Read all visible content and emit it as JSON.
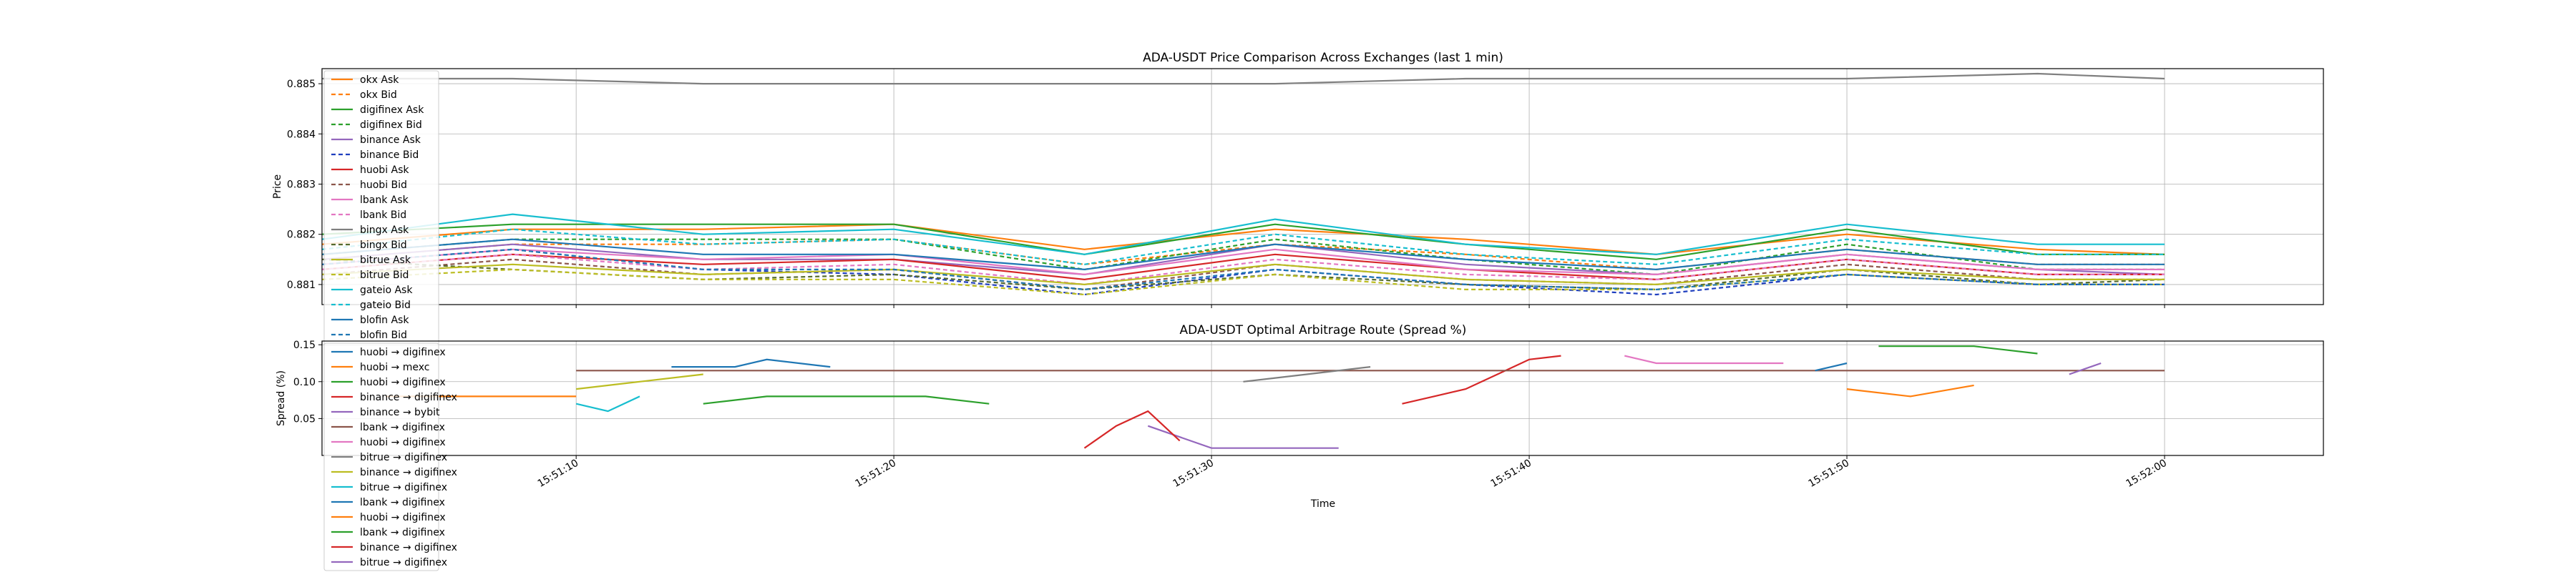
{
  "chart_data": [
    {
      "type": "line",
      "title": "ADA-USDT Price Comparison Across Exchanges (last 1 min)",
      "xlabel": "",
      "ylabel": "Price",
      "xlim": [
        "15:51:02",
        "15:52:05"
      ],
      "ylim": [
        0.8806,
        0.8853
      ],
      "yticks": [
        "0.881",
        "0.882",
        "0.883",
        "0.884",
        "0.885"
      ],
      "grid": true,
      "legend_position": "top-left",
      "series": [
        {
          "name": "okx Ask",
          "color": "#ff7f0e",
          "dash": "solid",
          "x": [
            "15:51:02",
            "15:51:08",
            "15:51:14",
            "15:51:20",
            "15:51:26",
            "15:51:32",
            "15:51:38",
            "15:51:44",
            "15:51:50",
            "15:51:56",
            "15:52:00"
          ],
          "values": [
            0.8818,
            0.8821,
            0.8821,
            0.8822,
            0.8817,
            0.8821,
            0.8819,
            0.8816,
            0.882,
            0.8817,
            0.8816
          ]
        },
        {
          "name": "okx Bid",
          "color": "#ff7f0e",
          "dash": "dashed",
          "x": [
            "15:51:02",
            "15:51:08",
            "15:51:14",
            "15:51:20",
            "15:51:26",
            "15:51:32",
            "15:51:38",
            "15:51:44",
            "15:51:50",
            "15:51:56",
            "15:52:00"
          ],
          "values": [
            0.8815,
            0.8818,
            0.8818,
            0.8819,
            0.8814,
            0.8818,
            0.8816,
            0.8813,
            0.8817,
            0.8814,
            0.8814
          ]
        },
        {
          "name": "digifinex Ask",
          "color": "#2ca02c",
          "dash": "solid",
          "x": [
            "15:51:02",
            "15:51:08",
            "15:51:14",
            "15:51:20",
            "15:51:26",
            "15:51:32",
            "15:51:38",
            "15:51:44",
            "15:51:50",
            "15:51:56",
            "15:52:00"
          ],
          "values": [
            0.882,
            0.8822,
            0.8822,
            0.8822,
            0.8816,
            0.8822,
            0.8818,
            0.8815,
            0.8821,
            0.8816,
            0.8816
          ]
        },
        {
          "name": "digifinex Bid",
          "color": "#2ca02c",
          "dash": "dashed",
          "x": [
            "15:51:02",
            "15:51:08",
            "15:51:14",
            "15:51:20",
            "15:51:26",
            "15:51:32",
            "15:51:38",
            "15:51:44",
            "15:51:50",
            "15:51:56",
            "15:52:00"
          ],
          "values": [
            0.8816,
            0.8819,
            0.8819,
            0.8819,
            0.8813,
            0.8819,
            0.8815,
            0.8812,
            0.8818,
            0.8813,
            0.8813
          ]
        },
        {
          "name": "binance Ask",
          "color": "#9467bd",
          "dash": "solid",
          "x": [
            "15:51:02",
            "15:51:08",
            "15:51:14",
            "15:51:20",
            "15:51:26",
            "15:51:32",
            "15:51:38",
            "15:51:44",
            "15:51:50",
            "15:51:56",
            "15:52:00"
          ],
          "values": [
            0.8815,
            0.8818,
            0.8815,
            0.8815,
            0.8812,
            0.8818,
            0.8814,
            0.8812,
            0.8816,
            0.8813,
            0.8812
          ]
        },
        {
          "name": "binance Bid",
          "color": "#1f3fbf",
          "dash": "dashed",
          "x": [
            "15:51:02",
            "15:51:08",
            "15:51:14",
            "15:51:20",
            "15:51:26",
            "15:51:32",
            "15:51:38",
            "15:51:44",
            "15:51:50",
            "15:51:56",
            "15:52:00"
          ],
          "values": [
            0.8814,
            0.8817,
            0.8813,
            0.8812,
            0.8808,
            0.8813,
            0.881,
            0.8808,
            0.8812,
            0.881,
            0.881
          ]
        },
        {
          "name": "huobi Ask",
          "color": "#d62728",
          "dash": "solid",
          "x": [
            "15:51:02",
            "15:51:08",
            "15:51:14",
            "15:51:20",
            "15:51:26",
            "15:51:32",
            "15:51:38",
            "15:51:44",
            "15:51:50",
            "15:51:56",
            "15:52:00"
          ],
          "values": [
            0.8813,
            0.8816,
            0.8814,
            0.8815,
            0.8811,
            0.8816,
            0.8813,
            0.8811,
            0.8815,
            0.8812,
            0.8812
          ]
        },
        {
          "name": "huobi Bid",
          "color": "#8c564b",
          "dash": "dashed",
          "x": [
            "15:51:02",
            "15:51:08",
            "15:51:14",
            "15:51:20",
            "15:51:26",
            "15:51:32",
            "15:51:38",
            "15:51:44",
            "15:51:50",
            "15:51:56",
            "15:52:00"
          ],
          "values": [
            0.8812,
            0.8815,
            0.8812,
            0.8813,
            0.8809,
            0.8814,
            0.8811,
            0.881,
            0.8814,
            0.8811,
            0.8811
          ]
        },
        {
          "name": "lbank Ask",
          "color": "#e377c2",
          "dash": "solid",
          "x": [
            "15:51:02",
            "15:51:08",
            "15:51:14",
            "15:51:20",
            "15:51:26",
            "15:51:32",
            "15:51:38",
            "15:51:44",
            "15:51:50",
            "15:51:56",
            "15:52:00"
          ],
          "values": [
            0.8814,
            0.8817,
            0.8815,
            0.8816,
            0.8812,
            0.8817,
            0.8813,
            0.8812,
            0.8816,
            0.8813,
            0.8813
          ]
        },
        {
          "name": "lbank Bid",
          "color": "#e377c2",
          "dash": "dashed",
          "x": [
            "15:51:02",
            "15:51:08",
            "15:51:14",
            "15:51:20",
            "15:51:26",
            "15:51:32",
            "15:51:38",
            "15:51:44",
            "15:51:50",
            "15:51:56",
            "15:52:00"
          ],
          "values": [
            0.8813,
            0.8816,
            0.8813,
            0.8814,
            0.881,
            0.8815,
            0.8812,
            0.8811,
            0.8815,
            0.8812,
            0.8812
          ]
        },
        {
          "name": "bingx Ask",
          "color": "#7f7f7f",
          "dash": "solid",
          "x": [
            "15:51:02",
            "15:51:08",
            "15:51:14",
            "15:51:20",
            "15:51:26",
            "15:51:32",
            "15:51:38",
            "15:51:44",
            "15:51:50",
            "15:51:56",
            "15:52:00"
          ],
          "values": [
            0.8851,
            0.8851,
            0.885,
            0.885,
            0.885,
            0.885,
            0.8851,
            0.8851,
            0.8851,
            0.8852,
            0.8851
          ]
        },
        {
          "name": "bingx Bid",
          "color": "#556b2f",
          "dash": "dashed",
          "x": [
            "15:51:02",
            "15:51:08",
            "15:51:14",
            "15:51:20",
            "15:51:26",
            "15:51:32",
            "15:51:38",
            "15:51:44",
            "15:51:50",
            "15:51:56",
            "15:52:00"
          ],
          "values": [
            0.8815,
            0.8813,
            0.8811,
            0.8812,
            0.8809,
            0.8812,
            0.881,
            0.8809,
            0.8813,
            0.881,
            0.8811
          ]
        },
        {
          "name": "bitrue Ask",
          "color": "#bcbd22",
          "dash": "solid",
          "x": [
            "15:51:02",
            "15:51:08",
            "15:51:14",
            "15:51:20",
            "15:51:26",
            "15:51:32",
            "15:51:38",
            "15:51:44",
            "15:51:50",
            "15:51:56",
            "15:52:00"
          ],
          "values": [
            0.8812,
            0.8814,
            0.8812,
            0.8813,
            0.881,
            0.8814,
            0.8811,
            0.881,
            0.8813,
            0.8811,
            0.8811
          ]
        },
        {
          "name": "bitrue Bid",
          "color": "#bcbd22",
          "dash": "dashed",
          "x": [
            "15:51:02",
            "15:51:08",
            "15:51:14",
            "15:51:20",
            "15:51:26",
            "15:51:32",
            "15:51:38",
            "15:51:44",
            "15:51:50",
            "15:51:56",
            "15:52:00"
          ],
          "values": [
            0.8811,
            0.8813,
            0.8811,
            0.8811,
            0.8808,
            0.8812,
            0.8809,
            0.8809,
            0.8812,
            0.881,
            0.881
          ]
        },
        {
          "name": "gateio Ask",
          "color": "#17becf",
          "dash": "solid",
          "x": [
            "15:51:02",
            "15:51:08",
            "15:51:14",
            "15:51:20",
            "15:51:26",
            "15:51:32",
            "15:51:38",
            "15:51:44",
            "15:51:50",
            "15:51:56",
            "15:52:00"
          ],
          "values": [
            0.8819,
            0.8824,
            0.882,
            0.8821,
            0.8816,
            0.8823,
            0.8818,
            0.8816,
            0.8822,
            0.8818,
            0.8818
          ]
        },
        {
          "name": "gateio Bid",
          "color": "#17becf",
          "dash": "dashed",
          "x": [
            "15:51:02",
            "15:51:08",
            "15:51:14",
            "15:51:20",
            "15:51:26",
            "15:51:32",
            "15:51:38",
            "15:51:44",
            "15:51:50",
            "15:51:56",
            "15:52:00"
          ],
          "values": [
            0.8817,
            0.8821,
            0.8818,
            0.8819,
            0.8814,
            0.882,
            0.8816,
            0.8814,
            0.8819,
            0.8816,
            0.8816
          ]
        },
        {
          "name": "blofin Ask",
          "color": "#1f77b4",
          "dash": "solid",
          "x": [
            "15:51:02",
            "15:51:08",
            "15:51:14",
            "15:51:20",
            "15:51:26",
            "15:51:32",
            "15:51:38",
            "15:51:44",
            "15:51:50",
            "15:51:56",
            "15:52:00"
          ],
          "values": [
            0.8816,
            0.8819,
            0.8816,
            0.8816,
            0.8813,
            0.8818,
            0.8815,
            0.8813,
            0.8817,
            0.8814,
            0.8814
          ]
        },
        {
          "name": "blofin Bid",
          "color": "#1f77b4",
          "dash": "dashed",
          "x": [
            "15:51:02",
            "15:51:08",
            "15:51:14",
            "15:51:20",
            "15:51:26",
            "15:51:32",
            "15:51:38",
            "15:51:44",
            "15:51:50",
            "15:51:56",
            "15:52:00"
          ],
          "values": [
            0.8814,
            0.8817,
            0.8813,
            0.8813,
            0.8809,
            0.8813,
            0.881,
            0.8809,
            0.8812,
            0.881,
            0.881
          ]
        }
      ]
    },
    {
      "type": "line",
      "title": "ADA-USDT Optimal Arbitrage Route (Spread %)",
      "xlabel": "Time",
      "ylabel": "Spread (%)",
      "xlim": [
        "15:51:02",
        "15:52:05"
      ],
      "ylim": [
        0.0,
        0.155
      ],
      "yticks": [
        "0.05",
        "0.10",
        "0.15"
      ],
      "xticks": [
        "15:51:10",
        "15:51:20",
        "15:51:30",
        "15:51:40",
        "15:51:50",
        "15:52:00"
      ],
      "grid": true,
      "legend_position": "top-left",
      "series": [
        {
          "name": "huobi → digifinex",
          "color": "#1f77b4",
          "x": [
            "15:51:13",
            "15:51:15",
            "15:51:16",
            "15:51:18"
          ],
          "values": [
            0.12,
            0.12,
            0.13,
            0.12
          ]
        },
        {
          "name": "huobi → mexc",
          "color": "#ff7f0e",
          "x": [
            "15:51:04",
            "15:51:07",
            "15:51:10"
          ],
          "values": [
            0.08,
            0.08,
            0.08
          ]
        },
        {
          "name": "huobi → digifinex",
          "color": "#2ca02c",
          "x": [
            "15:51:14",
            "15:51:16",
            "15:51:19",
            "15:51:21",
            "15:51:23"
          ],
          "values": [
            0.07,
            0.08,
            0.08,
            0.08,
            0.07
          ]
        },
        {
          "name": "binance → digifinex",
          "color": "#d62728",
          "x": [
            "15:51:36",
            "15:51:37",
            "15:51:38",
            "15:51:39",
            "15:51:40",
            "15:51:41"
          ],
          "values": [
            0.07,
            0.08,
            0.09,
            0.11,
            0.13,
            0.135
          ]
        },
        {
          "name": "binance → bybit",
          "color": "#9467bd",
          "x": [
            "15:51:28",
            "15:51:30",
            "15:51:32",
            "15:51:34"
          ],
          "values": [
            0.04,
            0.01,
            0.01,
            0.01
          ]
        },
        {
          "name": "lbank → digifinex",
          "color": "#8c564b",
          "x": [
            "15:51:10",
            "15:51:20",
            "15:51:30",
            "15:51:40",
            "15:51:50",
            "15:51:58",
            "15:52:00"
          ],
          "values": [
            0.115,
            0.115,
            0.115,
            0.115,
            0.115,
            0.115,
            0.115
          ]
        },
        {
          "name": "huobi → digifinex",
          "color": "#e377c2",
          "x": [
            "15:51:43",
            "15:51:44",
            "15:51:46",
            "15:51:48"
          ],
          "values": [
            0.135,
            0.125,
            0.125,
            0.125
          ]
        },
        {
          "name": "bitrue → digifinex",
          "color": "#7f7f7f",
          "x": [
            "15:51:31",
            "15:51:33",
            "15:51:35"
          ],
          "values": [
            0.1,
            0.11,
            0.12
          ]
        },
        {
          "name": "binance → digifinex",
          "color": "#bcbd22",
          "x": [
            "15:51:10",
            "15:51:12",
            "15:51:14"
          ],
          "values": [
            0.09,
            0.1,
            0.11
          ]
        },
        {
          "name": "bitrue → digifinex",
          "color": "#17becf",
          "x": [
            "15:51:10",
            "15:51:11",
            "15:51:12"
          ],
          "values": [
            0.07,
            0.06,
            0.08
          ]
        },
        {
          "name": "lbank → digifinex",
          "color": "#1f77b4",
          "x": [
            "15:51:49",
            "15:51:50"
          ],
          "values": [
            0.115,
            0.125
          ]
        },
        {
          "name": "huobi → digifinex",
          "color": "#ff7f0e",
          "x": [
            "15:51:50",
            "15:51:52",
            "15:51:54"
          ],
          "values": [
            0.09,
            0.08,
            0.095
          ]
        },
        {
          "name": "lbank → digifinex",
          "color": "#2ca02c",
          "x": [
            "15:51:51",
            "15:51:54",
            "15:51:56"
          ],
          "values": [
            0.148,
            0.148,
            0.138
          ]
        },
        {
          "name": "binance → digifinex",
          "color": "#d62728",
          "x": [
            "15:51:26",
            "15:51:27",
            "15:51:28",
            "15:51:29"
          ],
          "values": [
            0.01,
            0.04,
            0.06,
            0.02
          ]
        },
        {
          "name": "bitrue → digifinex",
          "color": "#9467bd",
          "x": [
            "15:51:57",
            "15:51:58"
          ],
          "values": [
            0.11,
            0.125
          ]
        }
      ]
    }
  ]
}
